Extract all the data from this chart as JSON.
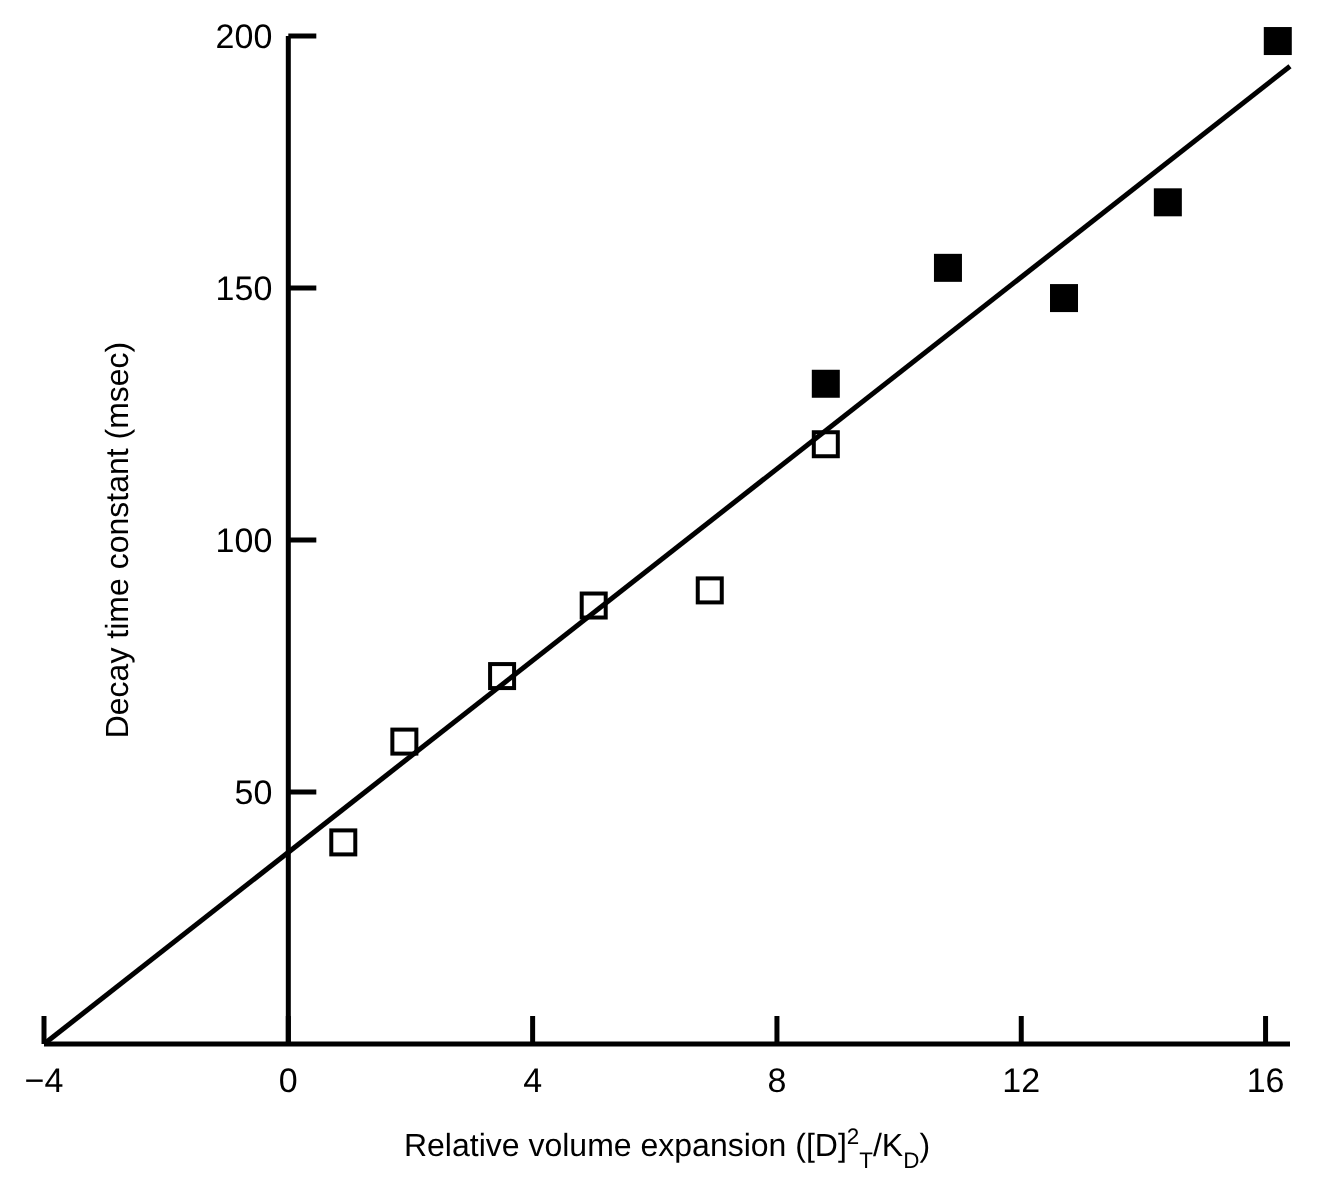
{
  "chart_data": {
    "type": "scatter",
    "xlabel": "Relative volume expansion ([D]$^{2}$$_{T}$/K$_{D}$)",
    "ylabel": "Decay time constant (msec)",
    "marker": "square",
    "xlim": [
      -4,
      16.4
    ],
    "ylim": [
      0,
      200
    ],
    "xticks": [
      -4,
      0,
      4,
      8,
      12,
      16
    ],
    "yticks": [
      50,
      100,
      150,
      200
    ],
    "series": [
      {
        "color": "#ffffff",
        "x": [
          0.9,
          1.9,
          3.5,
          5.0,
          6.9,
          8.8
        ],
        "values": [
          40,
          60,
          73,
          87,
          90,
          119
        ]
      },
      {
        "color": "#000000",
        "x": [
          8.8,
          10.8,
          12.7,
          14.4,
          16.2
        ],
        "values": [
          131,
          154,
          148,
          167,
          199
        ]
      },
      {
        "type": "line",
        "marker": "none",
        "color": "#000000",
        "x": [
          -4,
          16.4
        ],
        "values": [
          0,
          194
        ]
      }
    ]
  }
}
